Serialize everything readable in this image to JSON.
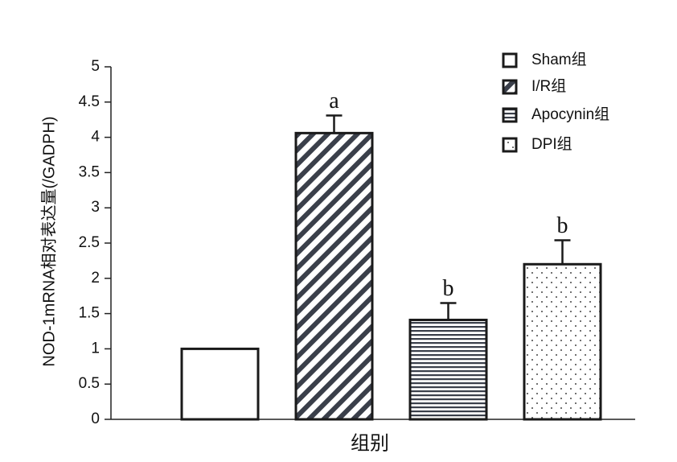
{
  "chart_data": {
    "type": "bar",
    "y_label": "NOD-1mRNA相对表达量(/GADPH)",
    "x_label": "组别",
    "categories": [
      "Sham组",
      "I/R组",
      "Apocynin组",
      "DPI组"
    ],
    "values": [
      1.0,
      4.06,
      1.41,
      2.2
    ],
    "errors": [
      null,
      0.25,
      0.24,
      0.34
    ],
    "annotations": [
      null,
      "a",
      "b",
      "b"
    ],
    "patterns": [
      "none",
      "diagonal",
      "horizontal",
      "dots"
    ],
    "color": "#1a1a1a",
    "ylim": [
      0,
      5
    ],
    "yticks": [
      0,
      0.5,
      1,
      1.5,
      2,
      2.5,
      3,
      3.5,
      4,
      4.5,
      5
    ],
    "legend": "upper right"
  }
}
